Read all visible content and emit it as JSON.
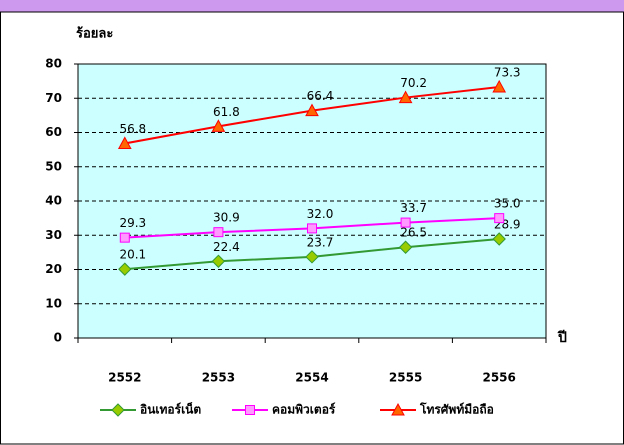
{
  "chart_data": {
    "type": "line",
    "y_label": "ร้อยละ",
    "x_label": "ปี",
    "categories": [
      "2552",
      "2553",
      "2554",
      "2555",
      "2556"
    ],
    "series": [
      {
        "name": "อินเทอร์เน็ต",
        "color": "#339933",
        "marker_color": "#99cc00",
        "marker": "diamond",
        "values": [
          20.1,
          22.4,
          23.7,
          26.5,
          28.9
        ],
        "value_labels": [
          "20.1",
          "22.4",
          "23.7",
          "26.5",
          "28.9"
        ]
      },
      {
        "name": "คอมพิวเตอร์",
        "color": "#ff00ff",
        "marker_color": "#ff99ff",
        "marker": "square",
        "values": [
          29.3,
          30.9,
          32.0,
          33.7,
          35.0
        ],
        "value_labels": [
          "29.3",
          "30.9",
          "32.0",
          "33.7",
          "35.0"
        ]
      },
      {
        "name": "โทรศัพท์มือถือ",
        "color": "#ff0000",
        "marker_color": "#ff6600",
        "marker": "triangle",
        "values": [
          56.8,
          61.8,
          66.4,
          70.2,
          73.3
        ],
        "value_labels": [
          "56.8",
          "61.8",
          "66.4",
          "70.2",
          "73.3"
        ]
      }
    ],
    "ylim": [
      0,
      80
    ],
    "yticks": [
      0,
      10,
      20,
      30,
      40,
      50,
      60,
      70,
      80
    ],
    "grid": true,
    "legend": "bottom"
  }
}
